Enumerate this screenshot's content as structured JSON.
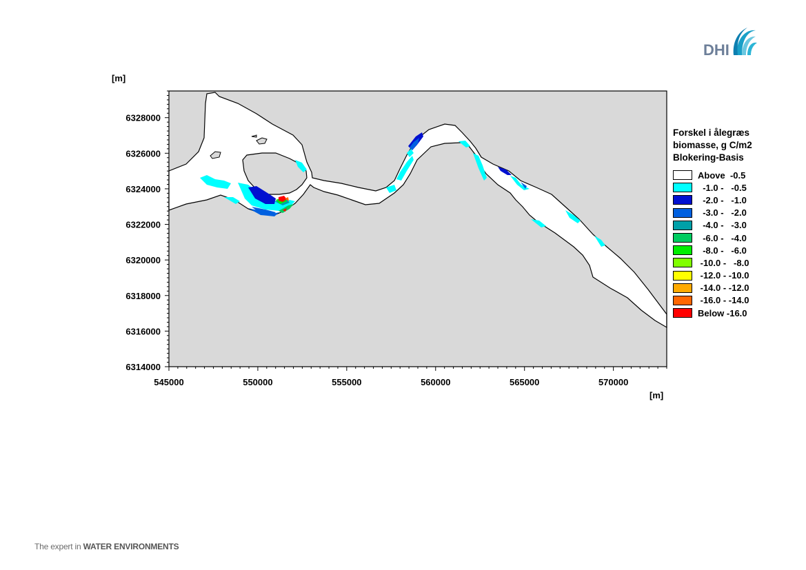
{
  "map": {
    "y_unit": "[m]",
    "x_unit": "[m]",
    "x_range": [
      545000,
      573000
    ],
    "y_range": [
      6314000,
      6329500
    ],
    "x_ticks": [
      "545000",
      "550000",
      "555000",
      "560000",
      "565000",
      "570000"
    ],
    "y_ticks": [
      "6328000",
      "6326000",
      "6324000",
      "6322000",
      "6320000",
      "6318000",
      "6316000",
      "6314000"
    ],
    "land_color": "#d9d9d9",
    "water_color": "#ffffff"
  },
  "legend": {
    "title_lines": [
      "Forskel i ålegræs",
      "biomasse, g C/m2",
      "Blokering-Basis"
    ],
    "items": [
      {
        "label": "Above  -0.5",
        "color": "#ffffff"
      },
      {
        "label": "  -1.0 -   -0.5",
        "color": "#00ffff"
      },
      {
        "label": "  -2.0 -   -1.0",
        "color": "#0010d0"
      },
      {
        "label": "  -3.0 -   -2.0",
        "color": "#0060e0"
      },
      {
        "label": "  -4.0 -   -3.0",
        "color": "#00a0a8"
      },
      {
        "label": "  -6.0 -   -4.0",
        "color": "#00cc60"
      },
      {
        "label": "  -8.0 -   -6.0",
        "color": "#00ee00"
      },
      {
        "label": " -10.0 -   -8.0",
        "color": "#80ff00"
      },
      {
        "label": " -12.0 - -10.0",
        "color": "#ffff00"
      },
      {
        "label": " -14.0 - -12.0",
        "color": "#ffaa00"
      },
      {
        "label": " -16.0 - -14.0",
        "color": "#ff6600"
      },
      {
        "label": "Below -16.0",
        "color": "#ff0000"
      }
    ]
  },
  "logo": {
    "text": "DHI",
    "color": "#6d7f99",
    "accent": "#1aa0c8"
  },
  "footer": {
    "prefix": "The expert in ",
    "strong": "WATER ENVIRONMENTS"
  }
}
